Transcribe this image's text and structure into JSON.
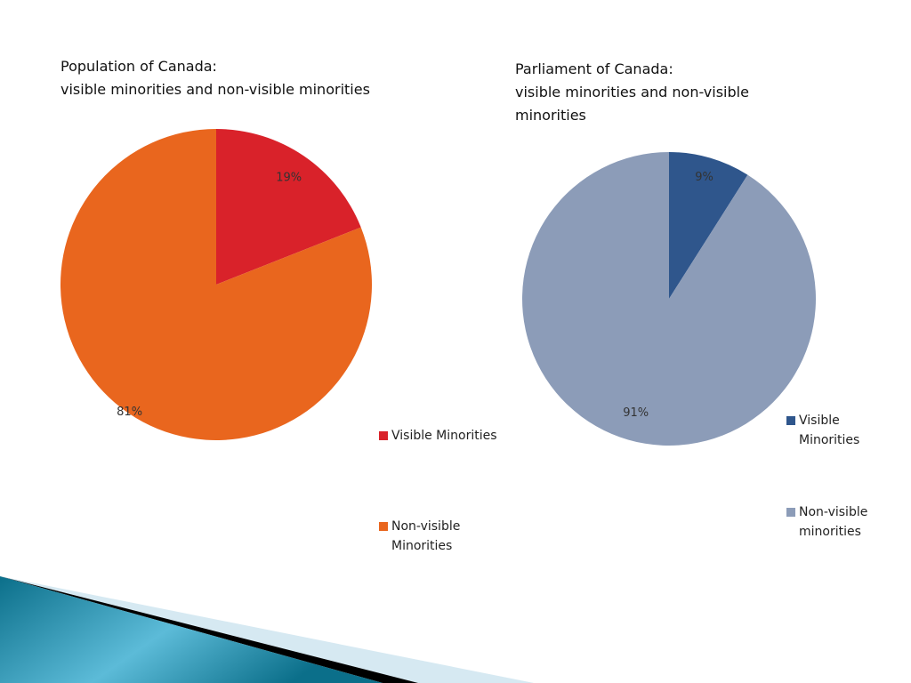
{
  "chart_data": [
    {
      "type": "pie",
      "title_line1": "Population of Canada:",
      "title_line2": "visible minorities and non-visible minorities",
      "categories": [
        "Visible Minorities",
        "Non-visible Minorities"
      ],
      "values": [
        19,
        81
      ],
      "data_labels": [
        "19%",
        "81%"
      ],
      "colors": [
        "#d9222a",
        "#e9661e"
      ],
      "legend_labels": [
        "Visible Minorities",
        "Non-visible Minorities"
      ],
      "legend_position": "right"
    },
    {
      "type": "pie",
      "title_line1": "Parliament of Canada:",
      "title_line2": "visible minorities and non-visible minorities",
      "categories": [
        "Visible Minorities",
        "Non-visible minorities"
      ],
      "values": [
        9,
        91
      ],
      "data_labels": [
        "9%",
        "91%"
      ],
      "colors": [
        "#2f568c",
        "#8c9cb8"
      ],
      "legend_labels": [
        "Visible Minorities",
        "Non-visible minorities"
      ],
      "legend_position": "right"
    }
  ],
  "decoration_colors": [
    "#0b6f8a",
    "#5cbbd8",
    "#000000",
    "#d6e9f2"
  ]
}
